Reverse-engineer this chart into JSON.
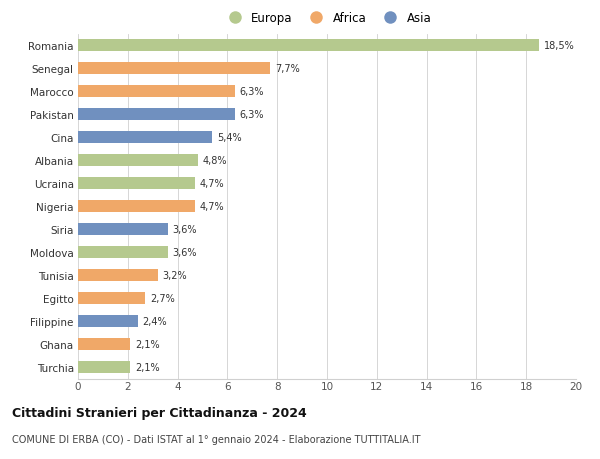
{
  "categories": [
    "Romania",
    "Senegal",
    "Marocco",
    "Pakistan",
    "Cina",
    "Albania",
    "Ucraina",
    "Nigeria",
    "Siria",
    "Moldova",
    "Tunisia",
    "Egitto",
    "Filippine",
    "Ghana",
    "Turchia"
  ],
  "values": [
    18.5,
    7.7,
    6.3,
    6.3,
    5.4,
    4.8,
    4.7,
    4.7,
    3.6,
    3.6,
    3.2,
    2.7,
    2.4,
    2.1,
    2.1
  ],
  "labels": [
    "18,5%",
    "7,7%",
    "6,3%",
    "6,3%",
    "5,4%",
    "4,8%",
    "4,7%",
    "4,7%",
    "3,6%",
    "3,6%",
    "3,2%",
    "2,7%",
    "2,4%",
    "2,1%",
    "2,1%"
  ],
  "continents": [
    "Europa",
    "Africa",
    "Africa",
    "Asia",
    "Asia",
    "Europa",
    "Europa",
    "Africa",
    "Asia",
    "Europa",
    "Africa",
    "Africa",
    "Asia",
    "Africa",
    "Europa"
  ],
  "colors": {
    "Europa": "#b5c98e",
    "Africa": "#f0a868",
    "Asia": "#7090bf"
  },
  "legend_labels": [
    "Europa",
    "Africa",
    "Asia"
  ],
  "title": "Cittadini Stranieri per Cittadinanza - 2024",
  "subtitle": "COMUNE DI ERBA (CO) - Dati ISTAT al 1° gennaio 2024 - Elaborazione TUTTITALIA.IT",
  "xlim": [
    0,
    20
  ],
  "xticks": [
    0,
    2,
    4,
    6,
    8,
    10,
    12,
    14,
    16,
    18,
    20
  ],
  "background_color": "#ffffff",
  "grid_color": "#d0d0d0"
}
